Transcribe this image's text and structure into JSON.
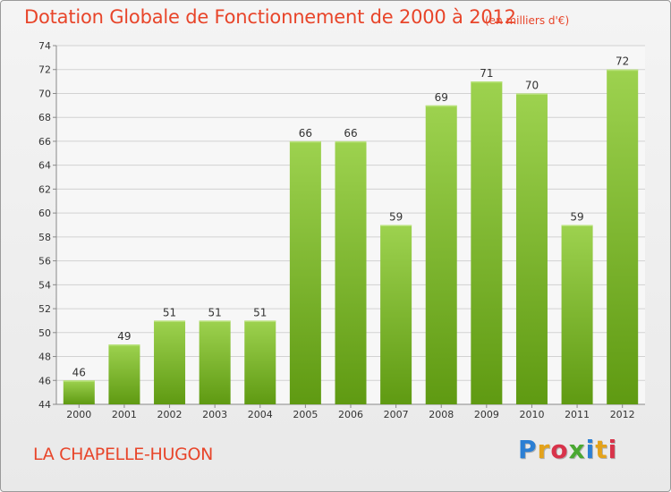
{
  "header": {
    "title": "Dotation Globale de Fonctionnement de 2000 à 2012",
    "unit": "(en milliers d'€)"
  },
  "footer": {
    "commune": "LA CHAPELLE-HUGON",
    "logo": "Proxiti"
  },
  "colors": {
    "title": "#e8452a",
    "bar_top": "#9dd24f",
    "bar_bottom": "#5f9a12",
    "grid": "#d2d2d2"
  },
  "chart_data": {
    "type": "bar",
    "title": "Dotation Globale de Fonctionnement de 2000 à 2012",
    "subtitle": "(en milliers d'€)",
    "categories": [
      "2000",
      "2001",
      "2002",
      "2003",
      "2004",
      "2005",
      "2006",
      "2007",
      "2008",
      "2009",
      "2010",
      "2011",
      "2012"
    ],
    "values": [
      46,
      49,
      51,
      51,
      51,
      66,
      66,
      59,
      69,
      71,
      70,
      59,
      72
    ],
    "ylim": [
      44,
      74
    ],
    "yticks": [
      44,
      46,
      48,
      50,
      52,
      54,
      56,
      58,
      60,
      62,
      64,
      66,
      68,
      70,
      72,
      74
    ],
    "grid": true,
    "data_labels": true
  }
}
